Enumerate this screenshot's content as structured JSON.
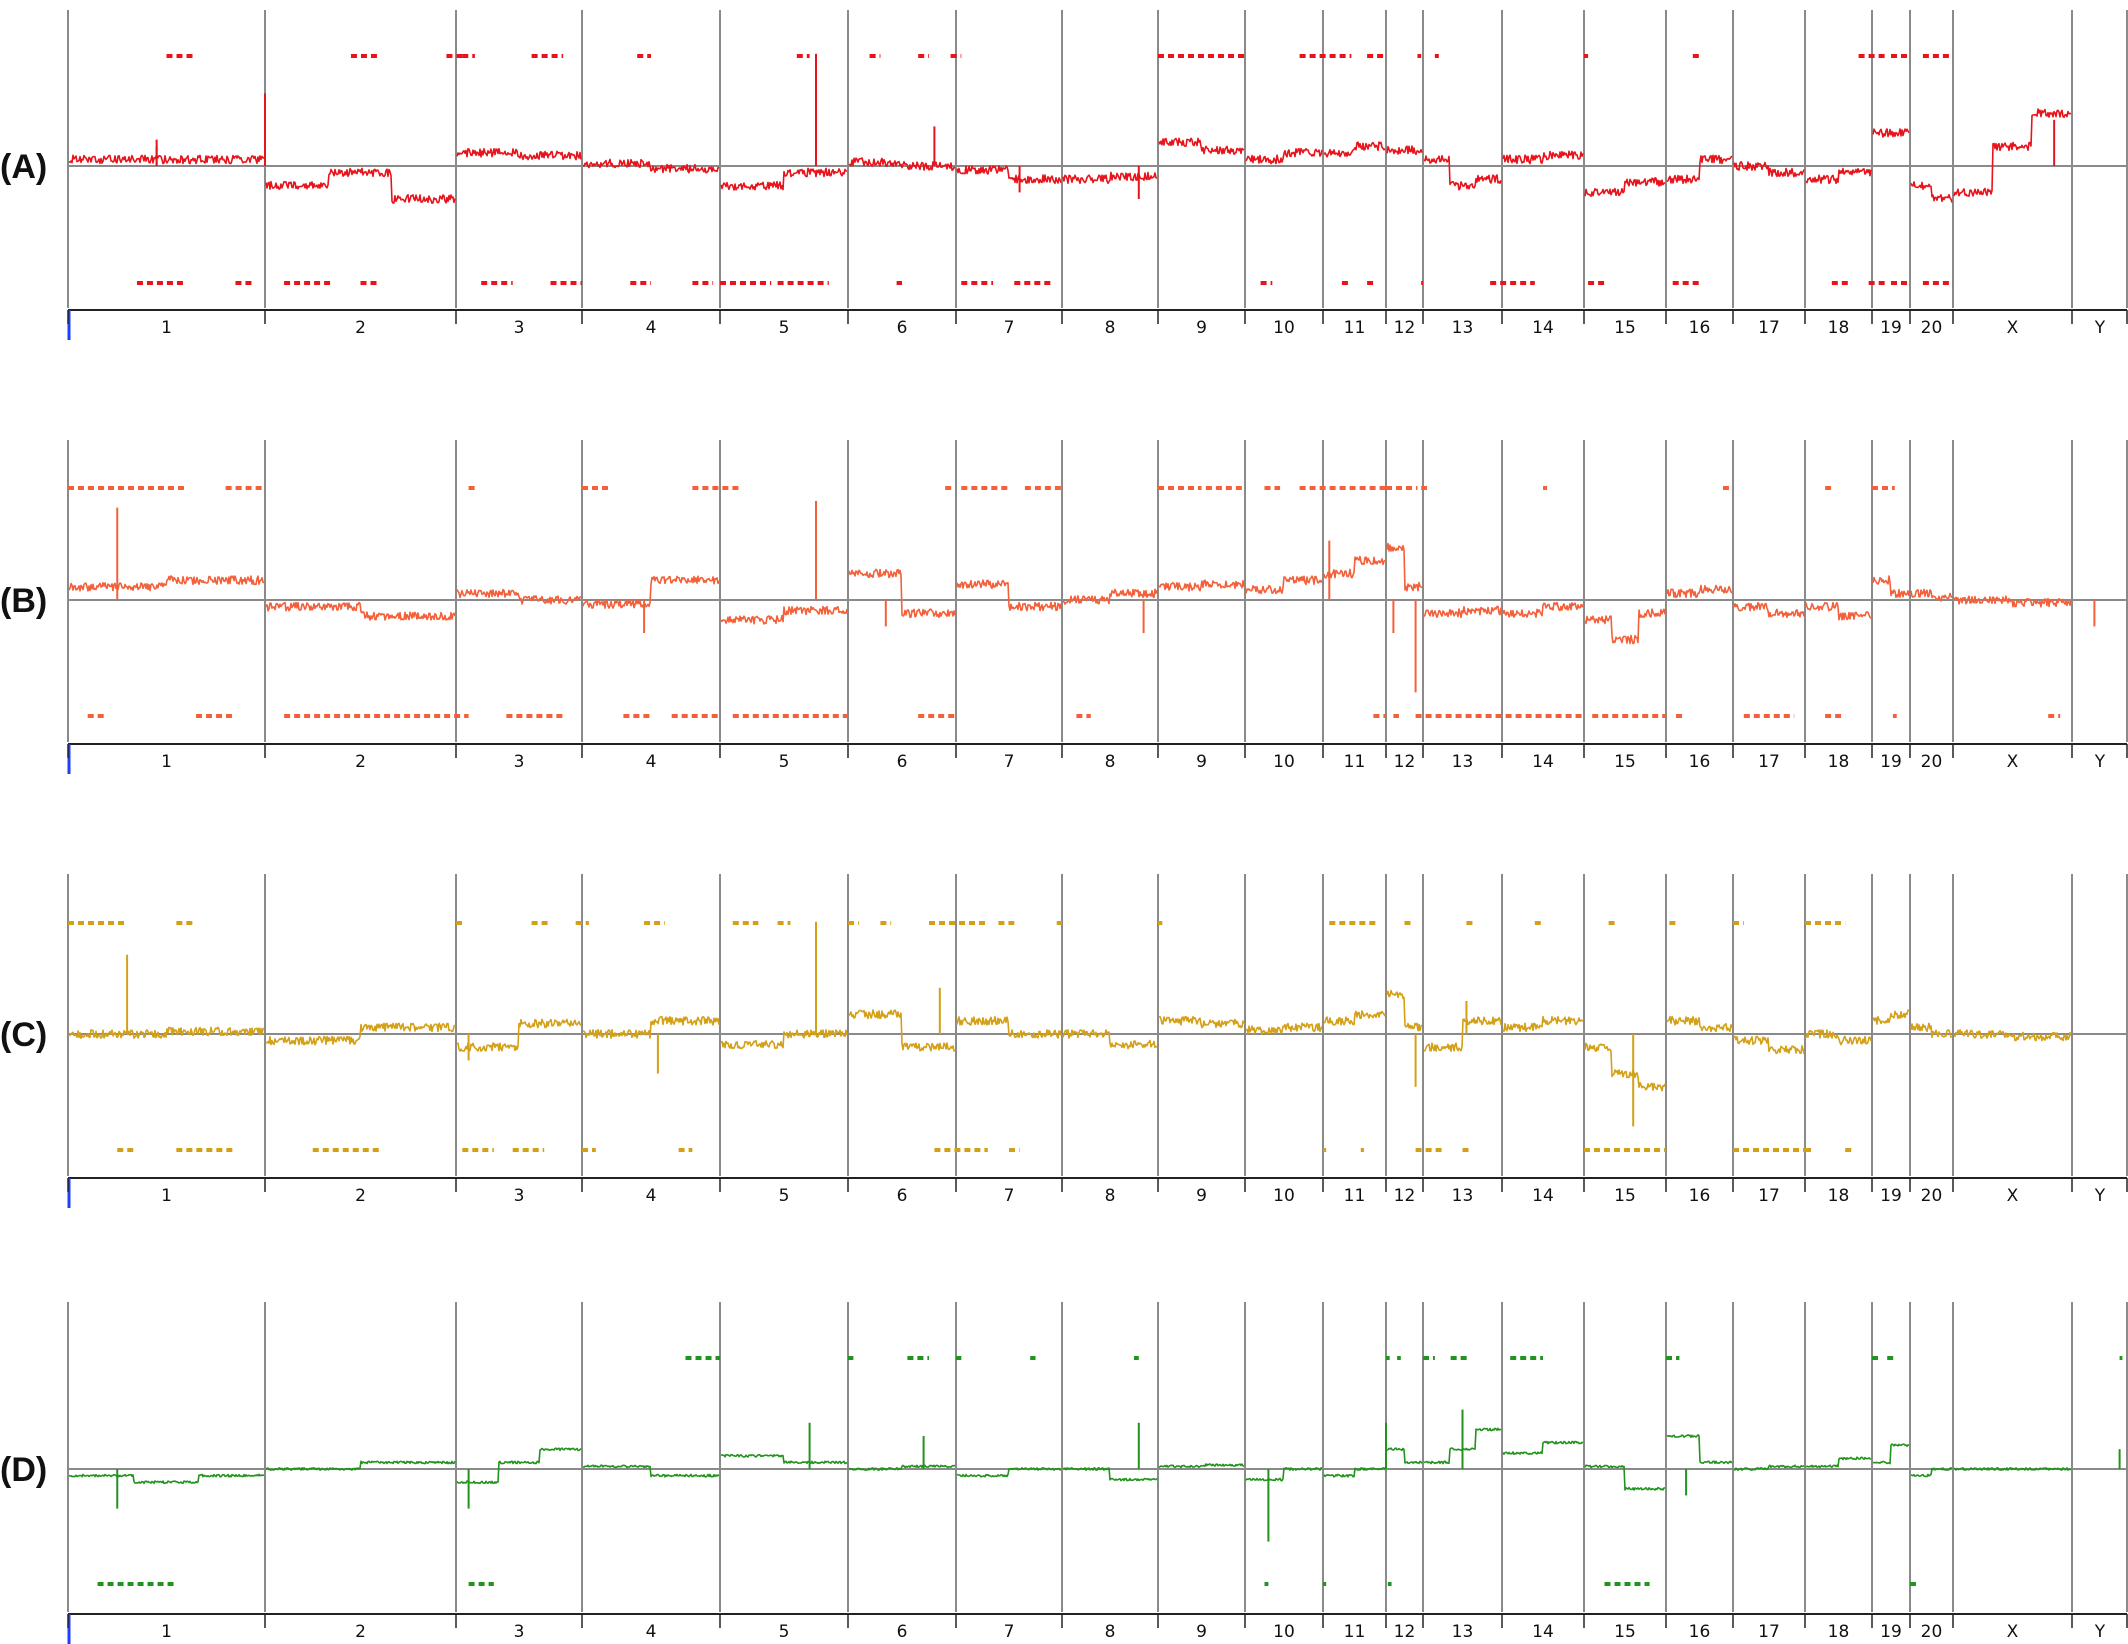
{
  "chart_data": {
    "type": "line",
    "chromosomes": [
      "1",
      "2",
      "3",
      "4",
      "5",
      "6",
      "7",
      "8",
      "9",
      "10",
      "11",
      "12",
      "13",
      "14",
      "15",
      "16",
      "17",
      "18",
      "19",
      "20",
      "X",
      "Y"
    ],
    "y_range": [
      -1,
      1
    ],
    "baseline": 0,
    "panels": [
      {
        "label": "(A)",
        "color": "#e8141c",
        "segments": [
          [
            0.05,
            0.05
          ],
          [
            -0.15,
            -0.05,
            -0.25
          ],
          [
            0.1,
            0.08
          ],
          [
            0.02,
            -0.02
          ],
          [
            -0.15,
            -0.05
          ],
          [
            0.03,
            0.0
          ],
          [
            -0.03,
            -0.1
          ],
          [
            -0.1,
            -0.08
          ],
          [
            0.18,
            0.12
          ],
          [
            0.05,
            0.1
          ],
          [
            0.1,
            0.15
          ],
          [
            0.12
          ],
          [
            0.05,
            -0.15,
            -0.1
          ],
          [
            0.05,
            0.08
          ],
          [
            -0.2,
            -0.12
          ],
          [
            -0.1,
            0.05
          ],
          [
            0.0,
            -0.05
          ],
          [
            -0.1,
            -0.05
          ],
          [
            0.25
          ],
          [
            -0.15,
            -0.25
          ],
          [
            -0.2,
            0.15,
            0.4
          ],
          []
        ],
        "spikes": [
          [
            0.45,
            0.15,
            0.2
          ],
          [
            1.0,
            0.45,
            0.55
          ],
          [
            4.75,
            0.85
          ],
          [
            5.8,
            0.3
          ],
          [
            6.6,
            -0.2
          ],
          [
            7.8,
            -0.25
          ],
          [
            20.85,
            0.35
          ]
        ],
        "gain_marks": [
          [
            0.5,
            0.65
          ],
          [
            1.45,
            1.6
          ],
          [
            1.95,
            2.05
          ],
          [
            2.05,
            2.15
          ],
          [
            2.6,
            2.85
          ],
          [
            3.4,
            3.5
          ],
          [
            4.6,
            4.7
          ],
          [
            5.2,
            5.3
          ],
          [
            5.65,
            5.75
          ],
          [
            5.95,
            6.05
          ],
          [
            8.0,
            9.0
          ],
          [
            9.7,
            10.45
          ],
          [
            10.7,
            11.0
          ],
          [
            11.85,
            11.95
          ],
          [
            12.15,
            12.2
          ],
          [
            14.0,
            14.05
          ],
          [
            15.4,
            15.5
          ],
          [
            17.8,
            18.35
          ],
          [
            18.5,
            19.0
          ],
          [
            19.3,
            20.0
          ]
        ],
        "loss_marks": [
          [
            0.35,
            0.6
          ],
          [
            0.85,
            0.95
          ],
          [
            1.1,
            1.35
          ],
          [
            1.5,
            1.6
          ],
          [
            2.2,
            2.45
          ],
          [
            2.75,
            3.0
          ],
          [
            3.35,
            3.5
          ],
          [
            3.8,
            3.95
          ],
          [
            4.0,
            4.4
          ],
          [
            4.45,
            4.85
          ],
          [
            5.45,
            5.5
          ],
          [
            6.05,
            6.35
          ],
          [
            6.55,
            6.9
          ],
          [
            9.2,
            9.35
          ],
          [
            10.3,
            10.45
          ],
          [
            10.7,
            10.85
          ],
          [
            11.95,
            12.0
          ],
          [
            12.85,
            13.4
          ],
          [
            14.05,
            14.25
          ],
          [
            15.1,
            15.5
          ],
          [
            17.4,
            17.65
          ],
          [
            17.95,
            18.35
          ],
          [
            18.5,
            19.0
          ],
          [
            19.3,
            20.0
          ]
        ]
      },
      {
        "label": "(B)",
        "color": "#f4603a",
        "segments": [
          [
            0.1,
            0.15
          ],
          [
            -0.05,
            -0.12
          ],
          [
            0.05,
            0.0
          ],
          [
            -0.03,
            0.15
          ],
          [
            -0.15,
            -0.08
          ],
          [
            0.2,
            -0.1
          ],
          [
            0.12,
            -0.05
          ],
          [
            0.0,
            0.05
          ],
          [
            0.1,
            0.12
          ],
          [
            0.08,
            0.15
          ],
          [
            0.2,
            0.3
          ],
          [
            0.4,
            0.1
          ],
          [
            -0.1,
            -0.08
          ],
          [
            -0.1,
            -0.05
          ],
          [
            -0.15,
            -0.3,
            -0.1
          ],
          [
            0.05,
            0.08
          ],
          [
            -0.05,
            -0.1
          ],
          [
            -0.05,
            -0.12
          ],
          [
            0.15,
            0.05
          ],
          [
            0.05,
            0.02
          ],
          [
            0.0,
            -0.02
          ],
          []
        ],
        "spikes": [
          [
            0.25,
            0.7
          ],
          [
            4.75,
            0.75
          ],
          [
            5.35,
            -0.2
          ],
          [
            7.85,
            -0.25
          ],
          [
            10.1,
            0.45
          ],
          [
            11.2,
            -0.25
          ],
          [
            11.8,
            -0.7
          ],
          [
            3.45,
            -0.25
          ],
          [
            21.4,
            -0.2
          ]
        ],
        "gain_marks": [
          [
            0.0,
            0.6
          ],
          [
            0.8,
            1.0
          ],
          [
            2.1,
            2.15
          ],
          [
            3.0,
            3.2
          ],
          [
            3.8,
            4.15
          ],
          [
            5.9,
            6.0
          ],
          [
            6.05,
            6.5
          ],
          [
            6.65,
            7.0
          ],
          [
            8.0,
            8.5
          ],
          [
            8.55,
            9.0
          ],
          [
            9.25,
            9.45
          ],
          [
            9.7,
            11.0
          ],
          [
            11.0,
            11.85
          ],
          [
            11.95,
            12.05
          ],
          [
            13.5,
            13.55
          ],
          [
            15.85,
            15.95
          ],
          [
            17.3,
            17.45
          ],
          [
            18.0,
            18.6
          ]
        ],
        "loss_marks": [
          [
            0.1,
            0.2
          ],
          [
            0.65,
            0.85
          ],
          [
            1.1,
            2.1
          ],
          [
            2.4,
            2.85
          ],
          [
            3.3,
            3.5
          ],
          [
            3.65,
            4.0
          ],
          [
            4.1,
            5.0
          ],
          [
            5.65,
            6.0
          ],
          [
            7.15,
            7.3
          ],
          [
            10.8,
            11.0
          ],
          [
            11.2,
            11.35
          ],
          [
            11.8,
            14.0
          ],
          [
            14.1,
            15.0
          ],
          [
            15.15,
            15.25
          ],
          [
            16.15,
            16.85
          ],
          [
            17.3,
            17.6
          ],
          [
            18.55,
            18.65
          ],
          [
            20.8,
            20.9
          ]
        ]
      },
      {
        "label": "(C)",
        "color": "#d4a017",
        "segments": [
          [
            0.0,
            0.02
          ],
          [
            -0.05,
            0.05
          ],
          [
            -0.1,
            0.08
          ],
          [
            0.0,
            0.1
          ],
          [
            -0.08,
            0.0
          ],
          [
            0.15,
            -0.1
          ],
          [
            0.1,
            0.0
          ],
          [
            0.0,
            -0.08
          ],
          [
            0.1,
            0.08
          ],
          [
            0.03,
            0.05
          ],
          [
            0.1,
            0.15
          ],
          [
            0.3,
            0.05
          ],
          [
            -0.1,
            0.1
          ],
          [
            0.05,
            0.1
          ],
          [
            -0.1,
            -0.3,
            -0.4
          ],
          [
            0.1,
            0.05
          ],
          [
            -0.05,
            -0.12
          ],
          [
            0.0,
            -0.05
          ],
          [
            0.1,
            0.15
          ],
          [
            0.05,
            0.0
          ],
          [
            0.0,
            -0.02
          ],
          []
        ],
        "spikes": [
          [
            0.3,
            0.6
          ],
          [
            2.1,
            -0.2
          ],
          [
            3.55,
            -0.3
          ],
          [
            4.75,
            0.85
          ],
          [
            5.85,
            0.35
          ],
          [
            11.8,
            -0.4
          ],
          [
            12.55,
            0.25
          ],
          [
            14.6,
            -0.7
          ]
        ],
        "gain_marks": [
          [
            0.0,
            0.3
          ],
          [
            0.55,
            0.65
          ],
          [
            2.0,
            2.05
          ],
          [
            2.6,
            2.75
          ],
          [
            2.95,
            3.05
          ],
          [
            3.45,
            3.6
          ],
          [
            4.1,
            4.3
          ],
          [
            4.45,
            4.55
          ],
          [
            5.0,
            5.1
          ],
          [
            5.3,
            5.4
          ],
          [
            5.75,
            6.3
          ],
          [
            6.4,
            6.55
          ],
          [
            6.95,
            7.0
          ],
          [
            8.0,
            8.05
          ],
          [
            10.1,
            10.85
          ],
          [
            11.5,
            11.7
          ],
          [
            12.55,
            12.65
          ],
          [
            13.4,
            13.5
          ],
          [
            14.3,
            14.4
          ],
          [
            15.05,
            15.15
          ],
          [
            16.0,
            16.15
          ],
          [
            17.0,
            17.6
          ]
        ],
        "loss_marks": [
          [
            0.25,
            0.35
          ],
          [
            0.55,
            0.85
          ],
          [
            1.25,
            1.6
          ],
          [
            2.05,
            2.3
          ],
          [
            2.45,
            2.7
          ],
          [
            3.0,
            3.1
          ],
          [
            3.7,
            3.8
          ],
          [
            5.8,
            6.3
          ],
          [
            6.5,
            6.6
          ],
          [
            10.0,
            10.05
          ],
          [
            10.6,
            10.65
          ],
          [
            11.8,
            12.25
          ],
          [
            12.5,
            12.6
          ],
          [
            14.0,
            15.0
          ],
          [
            16.0,
            17.0
          ],
          [
            17.0,
            17.15
          ],
          [
            17.6,
            17.7
          ]
        ]
      },
      {
        "label": "(D)",
        "color": "#22931c",
        "segments": [
          [
            -0.05,
            -0.1,
            -0.05
          ],
          [
            0.0,
            0.05
          ],
          [
            -0.1,
            0.05,
            0.15
          ],
          [
            0.02,
            -0.05
          ],
          [
            0.1,
            0.05
          ],
          [
            0.0,
            0.02
          ],
          [
            -0.05,
            0.0
          ],
          [
            0.0,
            -0.08
          ],
          [
            0.02,
            0.03
          ],
          [
            -0.08,
            0.0
          ],
          [
            -0.05,
            0.0
          ],
          [
            0.15,
            0.05
          ],
          [
            0.05,
            0.15,
            0.3
          ],
          [
            0.12,
            0.2
          ],
          [
            0.02,
            -0.15
          ],
          [
            0.25,
            0.05
          ],
          [
            0.0,
            0.02
          ],
          [
            0.02,
            0.08
          ],
          [
            0.05,
            0.18
          ],
          [
            -0.05,
            0.0
          ],
          [
            0.0,
            0.0
          ],
          []
        ],
        "spikes": [
          [
            0.25,
            -0.3
          ],
          [
            2.1,
            -0.3
          ],
          [
            4.7,
            0.35
          ],
          [
            5.7,
            0.25
          ],
          [
            7.8,
            0.35
          ],
          [
            9.3,
            -0.55
          ],
          [
            11.0,
            0.35
          ],
          [
            12.5,
            0.45
          ],
          [
            15.3,
            -0.2
          ],
          [
            21.85,
            0.15
          ]
        ],
        "gain_marks": [
          [
            3.75,
            4.0
          ],
          [
            5.0,
            5.05
          ],
          [
            5.55,
            5.75
          ],
          [
            6.0,
            6.05
          ],
          [
            6.7,
            6.75
          ],
          [
            7.75,
            7.8
          ],
          [
            11.0,
            11.1
          ],
          [
            11.3,
            11.4
          ],
          [
            12.0,
            12.15
          ],
          [
            12.35,
            12.6
          ],
          [
            13.1,
            13.5
          ],
          [
            15.0,
            15.2
          ],
          [
            18.0,
            18.2
          ],
          [
            18.4,
            18.6
          ],
          [
            21.85,
            21.9
          ]
        ],
        "loss_marks": [
          [
            0.15,
            0.55
          ],
          [
            2.1,
            2.3
          ],
          [
            9.25,
            9.3
          ],
          [
            10.0,
            10.05
          ],
          [
            11.05,
            11.15
          ],
          [
            14.25,
            14.8
          ],
          [
            19.0,
            19.15
          ]
        ]
      }
    ]
  }
}
